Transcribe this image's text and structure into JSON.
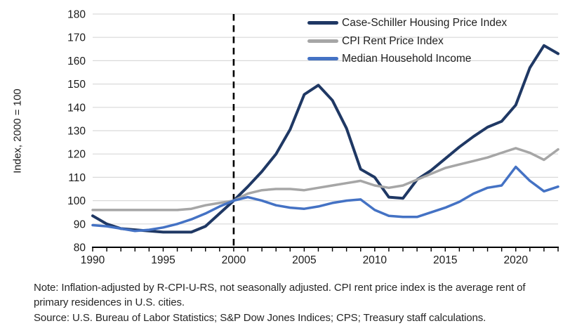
{
  "chart_data": {
    "type": "line",
    "title": "",
    "xlabel": "",
    "ylabel": "Index, 2000 = 100",
    "ylim": [
      80,
      180
    ],
    "y_tick_step": 10,
    "x": [
      1990,
      1991,
      1992,
      1993,
      1994,
      1995,
      1996,
      1997,
      1998,
      1999,
      2000,
      2001,
      2002,
      2003,
      2004,
      2005,
      2006,
      2007,
      2008,
      2009,
      2010,
      2011,
      2012,
      2013,
      2014,
      2015,
      2016,
      2017,
      2018,
      2019,
      2020,
      2021,
      2022,
      2023
    ],
    "x_tick_labels": [
      1990,
      1995,
      2000,
      2005,
      2010,
      2015,
      2020
    ],
    "reference_line_x": 2000,
    "reference_line_style": "dashed",
    "reference_line_color": "#000000",
    "grid": "horizontal",
    "legend_position": "top-right-inside",
    "series": [
      {
        "name": "Case-Schiller Housing Price Index",
        "color": "#1F3864",
        "stroke_width": 4,
        "values": [
          93.5,
          90,
          88,
          87.5,
          87,
          86.5,
          86.5,
          86.5,
          89,
          94.5,
          100,
          106,
          112.5,
          120,
          130.5,
          145.5,
          149.5,
          143,
          131,
          113.5,
          110,
          101.5,
          101,
          109,
          113,
          118,
          123,
          127.5,
          131.5,
          134,
          141,
          157,
          166.5,
          163
        ]
      },
      {
        "name": "CPI Rent Price Index",
        "color": "#A6A6A6",
        "stroke_width": 3.5,
        "values": [
          96,
          96,
          96,
          96,
          96,
          96,
          96,
          96.5,
          98,
          99,
          100,
          103,
          104.5,
          105,
          105,
          104.5,
          105.5,
          106.5,
          107.5,
          108.5,
          106.5,
          105.5,
          106.5,
          109,
          111.5,
          114,
          115.5,
          117,
          118.5,
          120.5,
          122.5,
          120.5,
          117.5,
          122
        ]
      },
      {
        "name": "Median Household Income",
        "color": "#4472C4",
        "stroke_width": 3.5,
        "values": [
          89.5,
          89,
          88,
          87,
          87.5,
          88.5,
          90,
          92,
          94.5,
          97.5,
          100,
          101.5,
          100,
          98,
          97,
          96.5,
          97.5,
          99,
          100,
          100.5,
          96,
          93.5,
          93,
          93,
          95,
          97,
          99.5,
          103,
          105.5,
          106.5,
          114.5,
          108.5,
          104,
          106
        ]
      }
    ]
  },
  "notes": {
    "note": "Note: Inflation-adjusted by R-CPI-U-RS, not seasonally adjusted. CPI rent price index is the average rent of primary residences in U.S. cities.",
    "source": "Source: U.S. Bureau of Labor Statistics; S&P Dow Jones Indices; CPS; Treasury staff calculations."
  }
}
